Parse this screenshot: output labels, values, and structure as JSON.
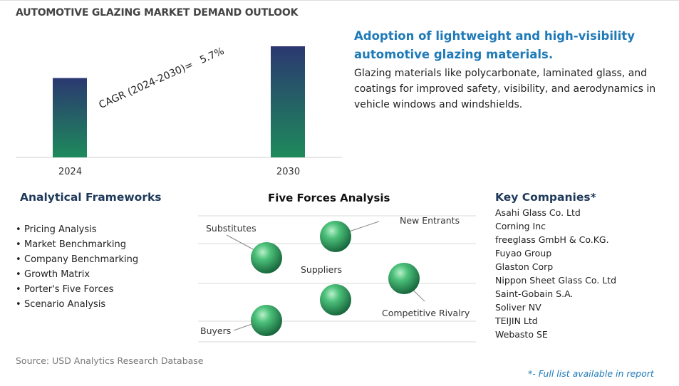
{
  "title": "AUTOMOTIVE GLAZING MARKET DEMAND OUTLOOK",
  "chart_data": {
    "type": "bar",
    "categories": [
      "2024",
      "2030"
    ],
    "values": [
      1.0,
      1.4
    ],
    "annotation": {
      "label": "CAGR (2024-2030)=",
      "value": "5.7%"
    },
    "colors": [
      "#1f8a5a",
      "#2c3a6e"
    ]
  },
  "headline": "Adoption of lightweight and high-visibility automotive glazing materials.",
  "description": "Glazing materials like polycarbonate, laminated glass, and coatings for improved safety, visibility, and aerodynamics in vehicle windows and windshields.",
  "frameworks": {
    "title": "Analytical Frameworks",
    "items": [
      "Pricing Analysis",
      "Market Benchmarking",
      "Company Benchmarking",
      "Growth Matrix",
      "Porter's Five Forces",
      "Scenario Analysis"
    ]
  },
  "five_forces": {
    "title": "Five Forces Analysis",
    "labels": [
      "New Entrants",
      "Substitutes",
      "Suppliers",
      "Competitive Rivalry",
      "Buyers"
    ]
  },
  "companies": {
    "title": "Key Companies*",
    "items": [
      "Asahi Glass Co. Ltd",
      "Corning Inc",
      "freeglass GmbH & Co.KG.",
      "Fuyao Group",
      "Glaston Corp",
      "Nippon Sheet Glass Co. Ltd",
      "Saint-Gobain S.A.",
      "Soliver NV",
      "TEIJIN Ltd",
      "Webasto SE"
    ]
  },
  "source": "Source: USD Analytics Research Database",
  "footnote": "*- Full list available in report"
}
